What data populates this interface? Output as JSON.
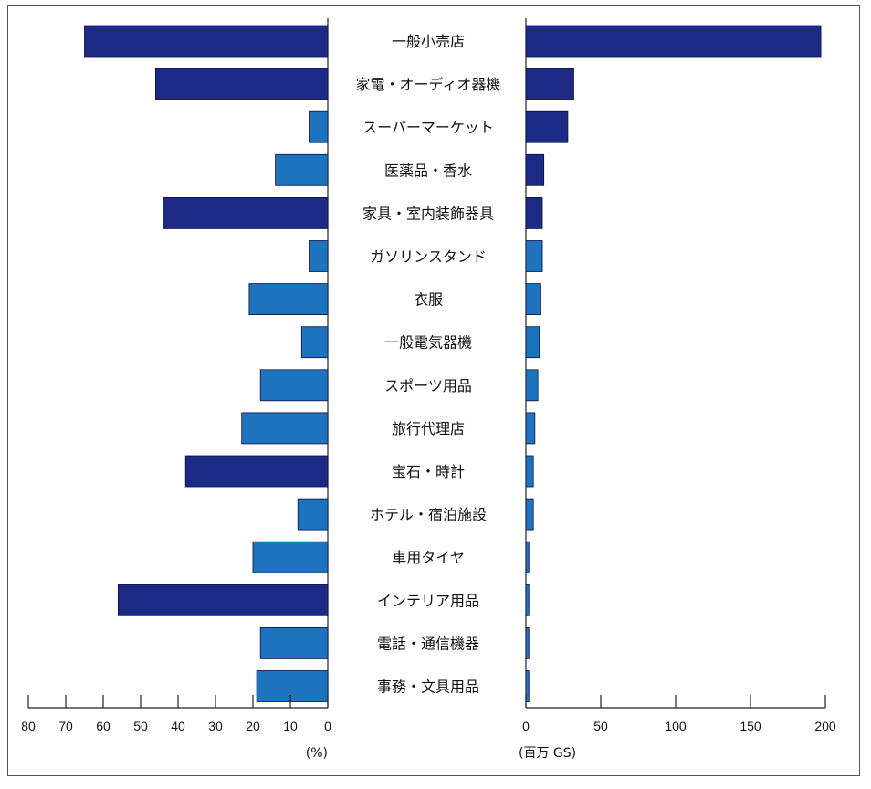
{
  "chart_data": {
    "type": "bar",
    "orientation": "horizontal-butterfly",
    "categories": [
      "一般小売店",
      "家電・オーディオ器機",
      "スーパーマーケット",
      "医薬品・香水",
      "家具・室内装飾器具",
      "ガソリンスタンド",
      "衣服",
      "一般電気器機",
      "スポーツ用品",
      "旅行代理店",
      "宝石・時計",
      "ホテル・宿泊施設",
      "車用タイヤ",
      "インテリア用品",
      "電話・通信機器",
      "事務・文具用品"
    ],
    "series": [
      {
        "values": [
          65,
          46,
          5,
          14,
          44,
          5,
          21,
          7,
          18,
          23,
          38,
          8,
          20,
          56,
          18,
          19
        ]
      },
      {
        "values": [
          197,
          32,
          28,
          12,
          11,
          11,
          10,
          9,
          8,
          6,
          5,
          5,
          2,
          2,
          2,
          2
        ]
      }
    ],
    "highlight": [
      true,
      true,
      false,
      false,
      true,
      false,
      false,
      false,
      false,
      false,
      true,
      false,
      false,
      true,
      false,
      false
    ],
    "left_axis": {
      "ticks": [
        80,
        70,
        60,
        50,
        40,
        30,
        20,
        10,
        0
      ],
      "range": [
        0,
        80
      ],
      "unit_label": "(%)"
    },
    "right_axis": {
      "ticks": [
        0,
        50,
        100,
        150,
        200
      ],
      "range": [
        0,
        200
      ],
      "unit_label": "(百万 GS)"
    },
    "colors": {
      "dark": "#1c2a85",
      "light": "#1e73be",
      "right": "#1c2a85"
    }
  }
}
